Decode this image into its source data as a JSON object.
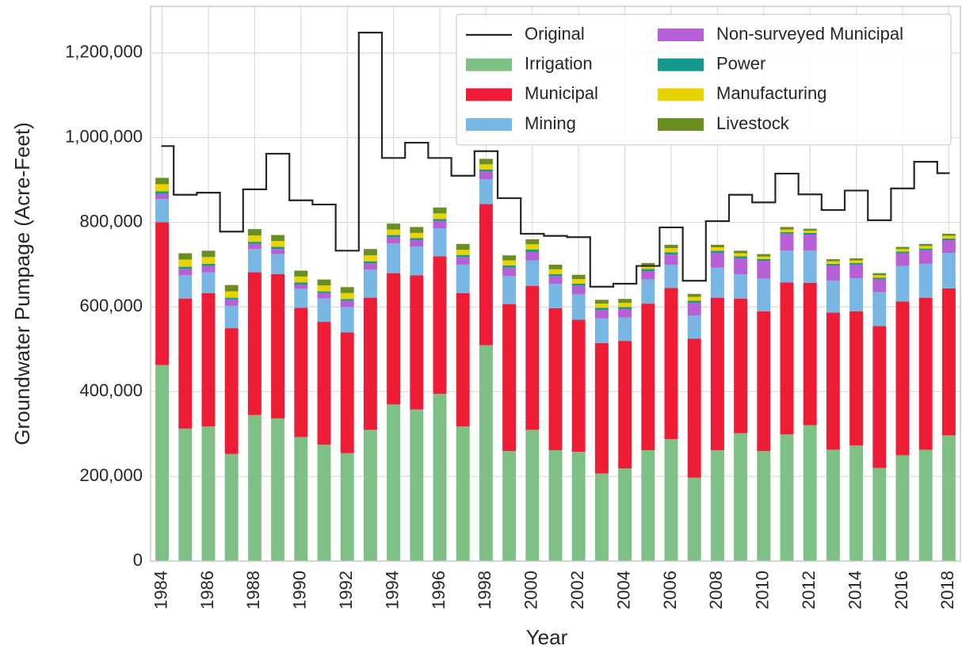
{
  "chart_data": {
    "type": "bar",
    "stacked": true,
    "xlabel": "Year",
    "ylabel": "Groundwater Pumpage (Acre-Feet)",
    "categories": [
      "1984",
      null,
      "1986",
      null,
      "1988",
      null,
      "1990",
      null,
      "1992",
      null,
      "1994",
      null,
      "1996",
      null,
      "1998",
      null,
      "2000",
      null,
      "2002",
      null,
      "2004",
      null,
      "2006",
      null,
      "2008",
      null,
      "2010",
      null,
      "2012",
      null,
      "2014",
      null,
      "2016",
      null,
      "2018"
    ],
    "ylim": [
      0,
      1310000
    ],
    "yticks": [
      0,
      {
        "value": 200000,
        "label": "200,000"
      },
      {
        "value": 400000,
        "label": "400,000"
      },
      {
        "value": 600000,
        "label": "600,000"
      },
      {
        "value": 800000,
        "label": "800,000"
      },
      {
        "value": 1000000,
        "label": "1,000,000"
      },
      {
        "value": 1200000,
        "label": "1,200,000"
      }
    ],
    "grid": true,
    "legend": {
      "loc": "upper right",
      "ncol": 2
    },
    "line_series": [
      {
        "name": "Original",
        "color": "#262626",
        "drawstyle": "steps-mid",
        "values": [
          980000,
          865000,
          870000,
          778000,
          878000,
          962000,
          852000,
          842000,
          733000,
          1248000,
          952000,
          988000,
          952000,
          910000,
          968000,
          857000,
          773000,
          768000,
          765000,
          648000,
          655000,
          697000,
          788000,
          662000,
          803000,
          865000,
          847000,
          915000,
          866000,
          829000,
          875000,
          805000,
          880000,
          943000,
          916000
        ]
      }
    ],
    "series": [
      {
        "name": "Irrigation",
        "color": "#7fc086",
        "values": [
          463000,
          313000,
          318000,
          253000,
          345000,
          337000,
          293000,
          275000,
          255000,
          310000,
          370000,
          358000,
          395000,
          318000,
          510000,
          260000,
          310000,
          262000,
          258000,
          207000,
          219000,
          262000,
          288000,
          197000,
          262000,
          302000,
          260000,
          299000,
          321000,
          263000,
          273000,
          220000,
          250000,
          263000,
          297000
        ]
      },
      {
        "name": "Municipal",
        "color": "#ee1c35",
        "values": [
          337000,
          307000,
          315000,
          297000,
          337000,
          341000,
          305000,
          290000,
          285000,
          312000,
          310000,
          317000,
          325000,
          315000,
          333000,
          347000,
          340000,
          335000,
          312000,
          308000,
          301000,
          346000,
          357000,
          328000,
          360000,
          318000,
          330000,
          359000,
          336000,
          324000,
          317000,
          335000,
          363000,
          359000,
          347000
        ]
      },
      {
        "name": "Mining",
        "color": "#78b6e4",
        "values": [
          55000,
          55000,
          49000,
          53000,
          55000,
          47000,
          45000,
          55000,
          60000,
          66000,
          70000,
          68000,
          66000,
          67000,
          59000,
          66000,
          60000,
          58000,
          60000,
          58000,
          55000,
          57000,
          55000,
          55000,
          71000,
          57000,
          77000,
          75000,
          76000,
          75000,
          78000,
          80000,
          84000,
          80000,
          84000
        ]
      },
      {
        "name": "Non-surveyed Municipal",
        "color": "#b65fd6",
        "values": [
          12000,
          15000,
          15000,
          15000,
          12000,
          12000,
          10000,
          13000,
          15000,
          15000,
          15000,
          15000,
          17000,
          18000,
          18000,
          20000,
          20000,
          18000,
          20000,
          20000,
          20000,
          20000,
          24000,
          30000,
          35000,
          38000,
          42000,
          40000,
          38000,
          36000,
          32000,
          30000,
          30000,
          32000,
          30000
        ]
      },
      {
        "name": "Power",
        "color": "#14998a",
        "values": [
          6000,
          5000,
          5000,
          4000,
          5000,
          5000,
          5000,
          4000,
          4000,
          5000,
          5000,
          5000,
          5000,
          5000,
          5000,
          5000,
          6000,
          5000,
          5000,
          5000,
          5000,
          5000,
          5000,
          5000,
          5000,
          5000,
          4000,
          4000,
          4000,
          4000,
          4000,
          4000,
          4000,
          4000,
          4000
        ]
      },
      {
        "name": "Manufacturing",
        "color": "#e8d400",
        "values": [
          17000,
          17000,
          16000,
          15000,
          15000,
          14000,
          14000,
          14000,
          14000,
          14000,
          13000,
          12000,
          13000,
          12000,
          12000,
          12000,
          12000,
          11000,
          11000,
          10000,
          10000,
          8000,
          10000,
          9000,
          8000,
          7000,
          6000,
          6000,
          5000,
          6000,
          6000,
          6000,
          6000,
          6000,
          6000
        ]
      },
      {
        "name": "Livestock",
        "color": "#6b8e23",
        "values": [
          15000,
          15000,
          15000,
          15000,
          15000,
          14000,
          14000,
          14000,
          14000,
          15000,
          14000,
          14000,
          14000,
          14000,
          13000,
          12000,
          12000,
          11000,
          10000,
          9000,
          9000,
          6000,
          8000,
          7000,
          6000,
          6000,
          6000,
          6000,
          5000,
          5000,
          5000,
          5000,
          5000,
          5000,
          5000
        ]
      }
    ]
  }
}
